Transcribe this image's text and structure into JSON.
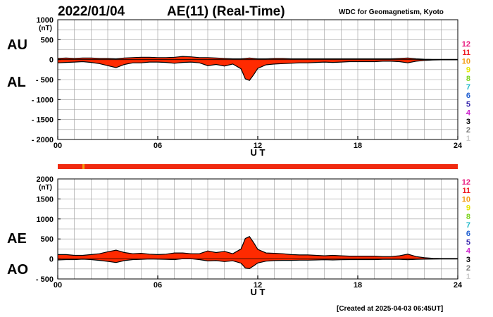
{
  "header": {
    "date": "2022/01/04",
    "title": "AE(11) (Real-Time)",
    "institution": "WDC for Geomagnetism, Kyoto"
  },
  "footer": {
    "created": "[Created at 2025-04-03 06:45UT]"
  },
  "colors": {
    "fill": "#ff2a00",
    "line": "#000000",
    "grid": "#9a9a9a",
    "bar": "#f02a10"
  },
  "station_scale": [
    {
      "label": "12",
      "color": "#e8177e"
    },
    {
      "label": "11",
      "color": "#ee1c24"
    },
    {
      "label": "10",
      "color": "#f39c12"
    },
    {
      "label": "9",
      "color": "#e6e600"
    },
    {
      "label": "8",
      "color": "#7ed321"
    },
    {
      "label": "7",
      "color": "#1fb8c8"
    },
    {
      "label": "6",
      "color": "#1f5fd1"
    },
    {
      "label": "5",
      "color": "#3322aa"
    },
    {
      "label": "4",
      "color": "#cc22cc"
    },
    {
      "label": "3",
      "color": "#000000"
    },
    {
      "label": "2",
      "color": "#777777"
    },
    {
      "label": "1",
      "color": "#cccccc"
    }
  ],
  "chart_data": [
    {
      "type": "area",
      "panel": "AU/AL",
      "upper_label": "AU",
      "lower_label": "AL",
      "ylabel": "(nT)",
      "xlabel": "U T",
      "xlim": [
        0,
        24
      ],
      "x_ticks": [
        "00",
        "06",
        "12",
        "18",
        "24"
      ],
      "ylim": [
        -2000,
        1000
      ],
      "y_ticks": [
        "1000",
        "500",
        "0",
        "- 500",
        "- 1000",
        "- 1500",
        "- 2000"
      ],
      "grid": true,
      "x": [
        0,
        0.5,
        1,
        1.5,
        2,
        2.5,
        3,
        3.5,
        4,
        4.5,
        5,
        5.5,
        6,
        6.5,
        7,
        7.5,
        8,
        8.5,
        9,
        9.5,
        10,
        10.5,
        11,
        11.25,
        11.5,
        11.75,
        12,
        12.5,
        13,
        13.5,
        14,
        14.5,
        15,
        15.5,
        16,
        16.5,
        17,
        17.5,
        18,
        18.5,
        19,
        19.5,
        20,
        20.5,
        21,
        21.5,
        22,
        22.5,
        23,
        23.5,
        24
      ],
      "series": [
        {
          "name": "AU",
          "values": [
            30,
            40,
            30,
            40,
            40,
            30,
            30,
            20,
            40,
            50,
            60,
            60,
            50,
            50,
            60,
            80,
            70,
            50,
            50,
            40,
            30,
            20,
            20,
            30,
            40,
            30,
            20,
            20,
            30,
            30,
            20,
            20,
            20,
            20,
            20,
            20,
            20,
            20,
            20,
            20,
            20,
            20,
            20,
            30,
            40,
            20,
            10,
            5,
            5,
            5,
            5
          ]
        },
        {
          "name": "AL",
          "values": [
            -80,
            -70,
            -60,
            -50,
            -70,
            -100,
            -150,
            -200,
            -120,
            -80,
            -80,
            -60,
            -60,
            -70,
            -90,
            -70,
            -60,
            -80,
            -150,
            -120,
            -160,
            -110,
            -230,
            -480,
            -520,
            -380,
            -220,
            -130,
            -110,
            -100,
            -90,
            -80,
            -80,
            -70,
            -60,
            -70,
            -60,
            -50,
            -50,
            -50,
            -50,
            -40,
            -40,
            -50,
            -80,
            -40,
            -20,
            -10,
            -5,
            -5,
            -5
          ]
        }
      ]
    },
    {
      "type": "area",
      "panel": "AE/AO",
      "upper_label": "AE",
      "lower_label": "AO",
      "ylabel": "(nT)",
      "xlabel": "U T",
      "xlim": [
        0,
        24
      ],
      "x_ticks": [
        "00",
        "06",
        "12",
        "18",
        "24"
      ],
      "ylim": [
        -500,
        2000
      ],
      "y_ticks": [
        "2000",
        "1500",
        "1000",
        "500",
        "0",
        "- 500"
      ],
      "grid": true,
      "x": [
        0,
        0.5,
        1,
        1.5,
        2,
        2.5,
        3,
        3.5,
        4,
        4.5,
        5,
        5.5,
        6,
        6.5,
        7,
        7.5,
        8,
        8.5,
        9,
        9.5,
        10,
        10.5,
        11,
        11.25,
        11.5,
        11.75,
        12,
        12.5,
        13,
        13.5,
        14,
        14.5,
        15,
        15.5,
        16,
        16.5,
        17,
        17.5,
        18,
        18.5,
        19,
        19.5,
        20,
        20.5,
        21,
        21.5,
        22,
        22.5,
        23,
        23.5,
        24
      ],
      "series": [
        {
          "name": "AE",
          "values": [
            110,
            110,
            90,
            90,
            110,
            130,
            180,
            220,
            160,
            130,
            140,
            120,
            110,
            120,
            150,
            150,
            130,
            130,
            200,
            160,
            190,
            130,
            250,
            510,
            560,
            410,
            240,
            150,
            140,
            130,
            110,
            100,
            100,
            90,
            80,
            90,
            80,
            70,
            70,
            70,
            70,
            60,
            60,
            80,
            120,
            60,
            30,
            15,
            10,
            10,
            10
          ]
        },
        {
          "name": "AO",
          "values": [
            -25,
            -15,
            -15,
            -5,
            -15,
            -35,
            -60,
            -90,
            -40,
            -15,
            -10,
            0,
            -5,
            -10,
            -15,
            5,
            5,
            -15,
            -50,
            -40,
            -65,
            -45,
            -105,
            -225,
            -240,
            -175,
            -100,
            -55,
            -40,
            -35,
            -35,
            -30,
            -30,
            -25,
            -20,
            -25,
            -20,
            -15,
            -15,
            -15,
            -15,
            -10,
            -10,
            -10,
            -20,
            -10,
            -5,
            -3,
            0,
            0,
            0
          ]
        }
      ]
    }
  ]
}
